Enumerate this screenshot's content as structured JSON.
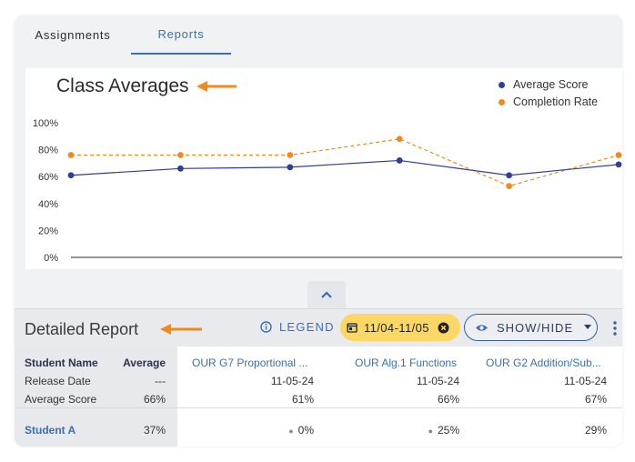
{
  "tabs": [
    {
      "label": "Assignments"
    },
    {
      "label": "Reports"
    }
  ],
  "chart_data": {
    "type": "line",
    "title": "Class Averages",
    "categories": [
      "",
      "",
      "",
      "",
      "",
      ""
    ],
    "ylim": [
      0,
      100
    ],
    "yticks": [
      "100%",
      "80%",
      "60%",
      "40%",
      "20%",
      "0%"
    ],
    "series": [
      {
        "name": "Average Score",
        "color": "#2f3d9b",
        "style": "solid",
        "values": [
          61,
          66,
          67,
          72,
          61,
          69
        ]
      },
      {
        "name": "Completion Rate",
        "color": "#f28a1b",
        "style": "dashed",
        "values": [
          76,
          76,
          76,
          88,
          53,
          76
        ]
      }
    ],
    "legend_position": "top-right"
  },
  "report": {
    "title": "Detailed Report",
    "legend_label": "LEGEND",
    "date_range": "11/04-11/05",
    "showhide_label": "SHOW/HIDE"
  },
  "table": {
    "headers": [
      "Student Name",
      "Average",
      "OUR G7 Proportional ...",
      "OUR Alg.1 Functions",
      "OUR G2 Addition/Sub..."
    ],
    "meta_rows": [
      {
        "label": "Release Date",
        "average": "---",
        "values": [
          "11-05-24",
          "11-05-24",
          "11-05-24"
        ]
      },
      {
        "label": "Average Score",
        "average": "66%",
        "values": [
          "61%",
          "66%",
          "67%"
        ]
      }
    ],
    "students": [
      {
        "name": "Student A",
        "average": "37%",
        "values": [
          "0%",
          "25%",
          "29%"
        ]
      }
    ]
  },
  "colors": {
    "accent": "#3b6fb3",
    "annotation": "#f28a1b",
    "date_chip": "#fbd765"
  }
}
